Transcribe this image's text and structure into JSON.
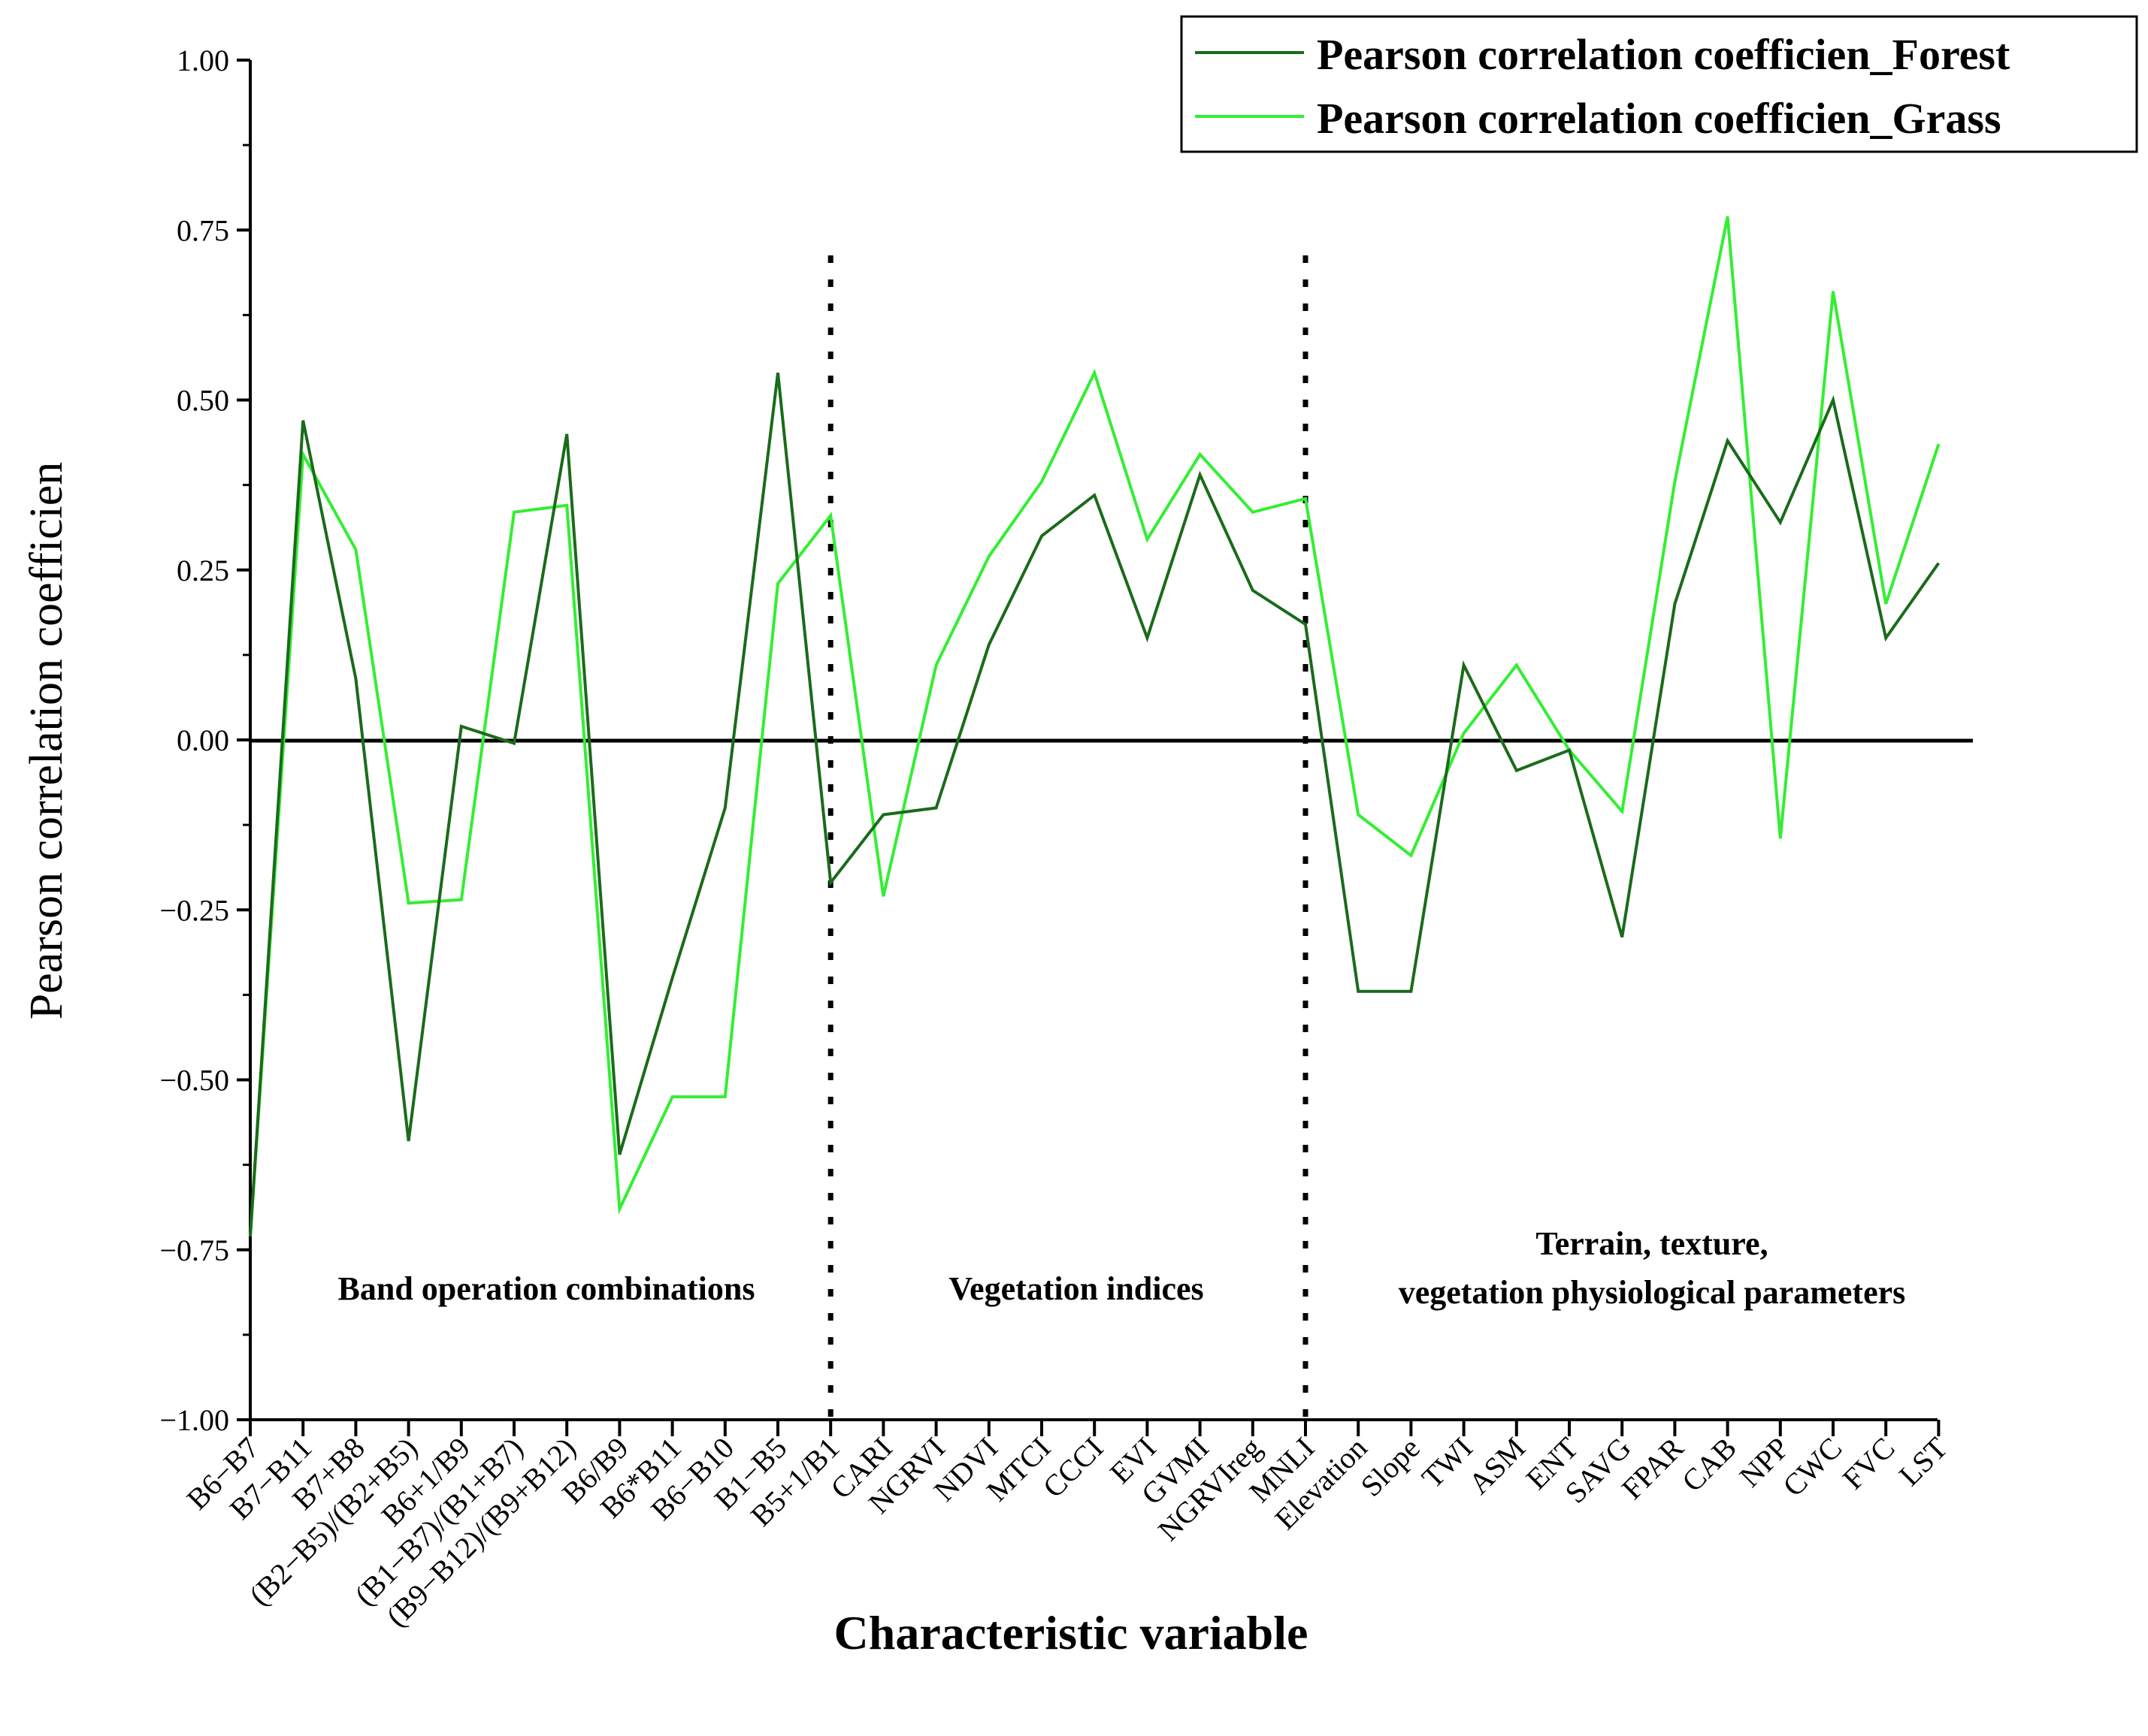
{
  "chart_data": {
    "type": "line",
    "title": "",
    "xlabel": "Characteristic variable",
    "ylabel": "Pearson correlation coefficien",
    "ylim": [
      -1.0,
      1.0
    ],
    "y_ticks": [
      "−1.00",
      "−0.75",
      "−0.50",
      "−0.25",
      "0.00",
      "0.25",
      "0.50",
      "0.75",
      "1.00"
    ],
    "y_tick_values": [
      -1.0,
      -0.75,
      -0.5,
      -0.25,
      0.0,
      0.25,
      0.5,
      0.75,
      1.0
    ],
    "legend_position": "top-right",
    "categories": [
      "B6−B7",
      "B7−B11",
      "B7+B8",
      "(B2−B5)/(B2+B5)",
      "B6+1/B9",
      "(B1−B7)/(B1+B7)",
      "(B9−B12)/(B9+B12)",
      "B6/B9",
      "B6*B11",
      "B6−B10",
      "B1−B5",
      "B5+1/B1",
      "CARI",
      "NGRVI",
      "NDVI",
      "MTCI",
      "CCCI",
      "EVI",
      "GVMI",
      "NGRVIreg",
      "MNLI",
      "Elevation",
      "Slope",
      "TWI",
      "ASM",
      "ENT",
      "SAVG",
      "FPAR",
      "CAB",
      "NPP",
      "CWC",
      "FVC",
      "LST"
    ],
    "series": [
      {
        "name": "Pearson correlation coefficien_Forest",
        "color": "#1a6b1a",
        "values": [
          -0.73,
          0.47,
          0.09,
          -0.59,
          0.02,
          -0.005,
          0.45,
          -0.61,
          -0.35,
          -0.1,
          0.54,
          -0.21,
          -0.11,
          -0.1,
          0.14,
          0.3,
          0.36,
          0.15,
          0.39,
          0.22,
          0.17,
          -0.37,
          -0.37,
          0.11,
          -0.045,
          -0.015,
          -0.29,
          0.2,
          0.44,
          0.32,
          0.5,
          0.15,
          0.26
        ]
      },
      {
        "name": "Pearson correlation coefficien_Grass",
        "color": "#33ee33",
        "values": [
          -0.73,
          0.42,
          0.28,
          -0.24,
          -0.235,
          0.335,
          0.345,
          -0.69,
          -0.525,
          -0.525,
          0.23,
          0.33,
          -0.23,
          0.11,
          0.27,
          0.38,
          0.54,
          0.295,
          0.42,
          0.335,
          0.355,
          -0.11,
          -0.17,
          0.01,
          0.11,
          -0.015,
          -0.105,
          0.38,
          0.77,
          -0.145,
          0.66,
          0.2,
          0.435
        ]
      }
    ],
    "sections": [
      {
        "label": "Band operation combinations"
      },
      {
        "label": "Vegetation indices"
      },
      {
        "label": "Terrain, texture,"
      },
      {
        "label": "vegetation physiological parameters"
      }
    ],
    "divider_after_indices": [
      11,
      20
    ]
  }
}
